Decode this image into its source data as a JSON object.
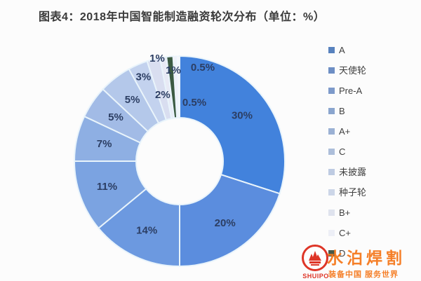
{
  "title": "图表4：2018年中国智能制造融资轮次分布（单位：%）",
  "chart_data": {
    "type": "pie",
    "subtype": "donut",
    "title": "图表4：2018年中国智能制造融资轮次分布（单位：%）",
    "unit": "%",
    "legend_position": "right",
    "label_color": "#2c3e63",
    "divider_color": "#e9f4fb",
    "slices": [
      {
        "name": "A",
        "value": 30,
        "label": "30%",
        "color": "#4282dc",
        "in_legend": true
      },
      {
        "name": "天使轮",
        "value": 20,
        "label": "20%",
        "color": "#5b8dde",
        "in_legend": true
      },
      {
        "name": "Pre-A",
        "value": 14,
        "label": "14%",
        "color": "#6c99e0",
        "in_legend": true
      },
      {
        "name": "B",
        "value": 11,
        "label": "11%",
        "color": "#7ba3e1",
        "in_legend": true
      },
      {
        "name": "A+",
        "value": 7,
        "label": "7%",
        "color": "#8eafe3",
        "in_legend": true
      },
      {
        "name": "C",
        "value": 5,
        "label": "5%",
        "color": "#a2bbe6",
        "in_legend": true
      },
      {
        "name": "未披露",
        "value": 5,
        "label": "5%",
        "color": "#b4c8ea",
        "in_legend": true
      },
      {
        "name": "种子轮",
        "value": 3,
        "label": "3%",
        "color": "#c3d2ee",
        "in_legend": true
      },
      {
        "name": "B+",
        "value": 2,
        "label": "2%",
        "color": "#d9def0",
        "in_legend": true
      },
      {
        "name": "C+",
        "value": 1,
        "label": "1%",
        "color": "#e8eaf5",
        "in_legend": true
      },
      {
        "name": "D",
        "value": 1,
        "label": "1%",
        "color": "#3c5a42",
        "in_legend": true
      },
      {
        "name": "",
        "value": 0.5,
        "label": "0.5%",
        "color": "#f0f1f8",
        "in_legend": false
      },
      {
        "name": "",
        "value": 0.5,
        "label": "0.5%",
        "color": "#f5f6fb",
        "in_legend": false
      }
    ]
  },
  "watermark": {
    "brand": "水泊焊割",
    "slogan": "装备中国  服务世界",
    "logo_text": "SHUIPO",
    "brand_color": "#f5791d",
    "logo_color": "#dd2b1c"
  }
}
